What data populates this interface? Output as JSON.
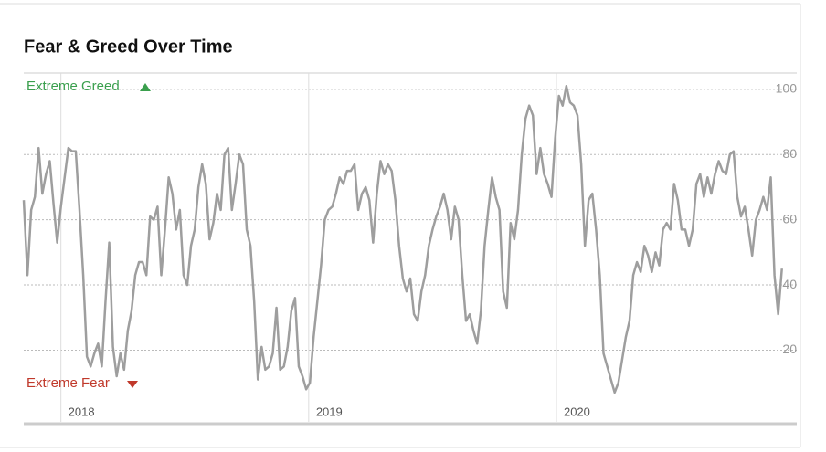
{
  "chart_data": {
    "type": "line",
    "title": "Fear & Greed Over Time",
    "annotations": {
      "top": "Extreme Greed",
      "bottom": "Extreme Fear"
    },
    "xlim": [
      2017.85,
      2020.97
    ],
    "xticks": [
      2018,
      2019,
      2020
    ],
    "ylim": [
      5,
      105
    ],
    "yticks": [
      20,
      40,
      60,
      80,
      100
    ],
    "grid": true,
    "series": [
      {
        "color": "#9e9e9e",
        "x": [
          2017.85,
          2017.865,
          2017.88,
          2017.895,
          2017.91,
          2017.925,
          2017.94,
          2017.955,
          2017.97,
          2017.985,
          2018,
          2018.015,
          2018.03,
          2018.045,
          2018.06,
          2018.075,
          2018.09,
          2018.105,
          2018.12,
          2018.135,
          2018.15,
          2018.165,
          2018.18,
          2018.195,
          2018.21,
          2018.225,
          2018.24,
          2018.255,
          2018.27,
          2018.285,
          2018.3,
          2018.315,
          2018.33,
          2018.345,
          2018.36,
          2018.375,
          2018.39,
          2018.405,
          2018.42,
          2018.435,
          2018.45,
          2018.465,
          2018.48,
          2018.495,
          2018.51,
          2018.525,
          2018.54,
          2018.555,
          2018.57,
          2018.585,
          2018.6,
          2018.615,
          2018.63,
          2018.645,
          2018.66,
          2018.675,
          2018.69,
          2018.705,
          2018.72,
          2018.735,
          2018.75,
          2018.765,
          2018.78,
          2018.795,
          2018.81,
          2018.825,
          2018.84,
          2018.855,
          2018.87,
          2018.885,
          2018.9,
          2018.915,
          2018.93,
          2018.945,
          2018.96,
          2018.975,
          2018.99,
          2019.005,
          2019.02,
          2019.035,
          2019.05,
          2019.065,
          2019.08,
          2019.095,
          2019.11,
          2019.125,
          2019.14,
          2019.155,
          2019.17,
          2019.185,
          2019.2,
          2019.215,
          2019.23,
          2019.245,
          2019.26,
          2019.275,
          2019.29,
          2019.305,
          2019.32,
          2019.335,
          2019.35,
          2019.365,
          2019.38,
          2019.395,
          2019.41,
          2019.425,
          2019.44,
          2019.455,
          2019.47,
          2019.485,
          2019.5,
          2019.515,
          2019.53,
          2019.545,
          2019.56,
          2019.575,
          2019.59,
          2019.605,
          2019.62,
          2019.635,
          2019.65,
          2019.665,
          2019.68,
          2019.695,
          2019.71,
          2019.725,
          2019.74,
          2019.755,
          2019.77,
          2019.785,
          2019.8,
          2019.815,
          2019.83,
          2019.845,
          2019.86,
          2019.875,
          2019.89,
          2019.905,
          2019.92,
          2019.935,
          2019.95,
          2019.965,
          2019.98,
          2019.995,
          2020.01,
          2020.025,
          2020.04,
          2020.055,
          2020.07,
          2020.085,
          2020.1,
          2020.115,
          2020.13,
          2020.145,
          2020.16,
          2020.175,
          2020.19,
          2020.205,
          2020.22,
          2020.235,
          2020.25,
          2020.265,
          2020.28,
          2020.295,
          2020.31,
          2020.325,
          2020.34,
          2020.355,
          2020.37,
          2020.385,
          2020.4,
          2020.415,
          2020.43,
          2020.445,
          2020.46,
          2020.475,
          2020.49,
          2020.505,
          2020.52,
          2020.535,
          2020.55,
          2020.565,
          2020.58,
          2020.595,
          2020.61,
          2020.625,
          2020.64,
          2020.655,
          2020.67,
          2020.685,
          2020.7,
          2020.715,
          2020.73,
          2020.745,
          2020.76,
          2020.775,
          2020.79,
          2020.805,
          2020.82,
          2020.835,
          2020.85,
          2020.865,
          2020.88,
          2020.895,
          2020.91
        ],
        "values": [
          66,
          43,
          63,
          67,
          82,
          68,
          74,
          78,
          65,
          53,
          64,
          73,
          82,
          81,
          81,
          63,
          43,
          18,
          15,
          19,
          22,
          15,
          35,
          53,
          21,
          12,
          19,
          14,
          26,
          32,
          43,
          47,
          47,
          43,
          61,
          60,
          64,
          43,
          57,
          73,
          68,
          57,
          63,
          43,
          40,
          52,
          57,
          70,
          77,
          71,
          54,
          59,
          68,
          63,
          80,
          82,
          63,
          71,
          80,
          77,
          57,
          52,
          35,
          11,
          21,
          14,
          15,
          19,
          33,
          14,
          15,
          21,
          32,
          36,
          15,
          12,
          8,
          10,
          24,
          35,
          46,
          60,
          63,
          64,
          68,
          73,
          71,
          75,
          75,
          77,
          63,
          68,
          70,
          66,
          53,
          68,
          78,
          74,
          77,
          75,
          66,
          52,
          42,
          38,
          42,
          31,
          29,
          38,
          43,
          52,
          57,
          61,
          64,
          68,
          63,
          54,
          64,
          60,
          43,
          29,
          31,
          26,
          22,
          32,
          52,
          63,
          73,
          67,
          63,
          38,
          33,
          59,
          54,
          63,
          80,
          91,
          95,
          92,
          74,
          82,
          74,
          71,
          67,
          85,
          98,
          95,
          101,
          96,
          95,
          92,
          77,
          52,
          66,
          68,
          57,
          43,
          19,
          15,
          11,
          7,
          10,
          17,
          24,
          29,
          43,
          47,
          44,
          52,
          49,
          44,
          50,
          46,
          57,
          59,
          57,
          71,
          66,
          57,
          57,
          52,
          57,
          71,
          74,
          67,
          73,
          68,
          74,
          78,
          75,
          74,
          80,
          81,
          67,
          61,
          64,
          57,
          49,
          60,
          63,
          67,
          63,
          73,
          43,
          31,
          45
        ]
      }
    ]
  }
}
